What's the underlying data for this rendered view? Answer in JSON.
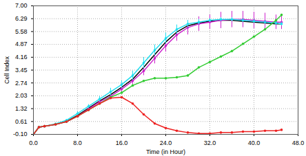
{
  "chart_data": {
    "type": "line",
    "x_label": "Time (in Hour)",
    "y_label": "Cell Index",
    "xlim": [
      0,
      48
    ],
    "xticks": [
      {
        "value": 0,
        "label": "0.0"
      },
      {
        "value": 8,
        "label": "8.0"
      },
      {
        "value": 16,
        "label": "16.0"
      },
      {
        "value": 24,
        "label": "24.0"
      },
      {
        "value": 32,
        "label": "32.0"
      },
      {
        "value": 40,
        "label": "40.0"
      },
      {
        "value": 48,
        "label": "48.0"
      }
    ],
    "ylim": [
      -0.1,
      7.0
    ],
    "yticks": [
      {
        "value": -0.1,
        "label": "-0.10"
      },
      {
        "value": 0.61,
        "label": "0.61"
      },
      {
        "value": 1.32,
        "label": "1.32"
      },
      {
        "value": 2.03,
        "label": "2.03"
      },
      {
        "value": 2.74,
        "label": "2.74"
      },
      {
        "value": 3.45,
        "label": "3.45"
      },
      {
        "value": 4.16,
        "label": "4.16"
      },
      {
        "value": 4.87,
        "label": "4.87"
      },
      {
        "value": 5.58,
        "label": "5.58"
      },
      {
        "value": 6.29,
        "label": "6.29"
      },
      {
        "value": 7.0,
        "label": "7.00"
      }
    ],
    "grid": true,
    "x": [
      0,
      1,
      2,
      4,
      6,
      8,
      10,
      12,
      14,
      16,
      18,
      20,
      22,
      24,
      26,
      28,
      30,
      32,
      34,
      36,
      38,
      40,
      42,
      44,
      45
    ],
    "series": [
      {
        "color": "#000000",
        "marker": "none",
        "values": [
          -0.1,
          0.3,
          0.35,
          0.45,
          0.62,
          0.95,
          1.35,
          1.75,
          2.1,
          2.5,
          2.95,
          3.6,
          4.3,
          5.0,
          5.55,
          5.9,
          6.05,
          6.15,
          6.2,
          6.2,
          6.15,
          6.1,
          6.05,
          6.0,
          6.0
        ]
      },
      {
        "color": "#cc22cc",
        "marker": "dot",
        "values": [
          -0.1,
          0.3,
          0.35,
          0.45,
          0.6,
          0.9,
          1.3,
          1.7,
          2.0,
          2.4,
          2.85,
          3.4,
          4.1,
          4.8,
          5.4,
          5.8,
          6.0,
          6.1,
          6.2,
          6.25,
          6.25,
          6.2,
          6.15,
          6.1,
          6.1
        ],
        "errors": [
          0,
          0,
          0,
          0.05,
          0.05,
          0.1,
          0.1,
          0.15,
          0.15,
          0.2,
          0.2,
          0.25,
          0.3,
          0.35,
          0.35,
          0.4,
          0.4,
          0.4,
          0.45,
          0.45,
          0.45,
          0.45,
          0.45,
          0.4,
          0.4
        ]
      },
      {
        "color": "#22ddee",
        "marker": "dot",
        "values": [
          -0.1,
          0.3,
          0.35,
          0.48,
          0.68,
          1.05,
          1.45,
          1.85,
          2.25,
          2.65,
          3.15,
          3.85,
          4.55,
          5.2,
          5.7,
          6.0,
          6.1,
          6.2,
          6.25,
          6.25,
          6.2,
          6.15,
          6.1,
          6.05,
          6.0
        ],
        "errors": [
          0,
          0,
          0,
          0.05,
          0.05,
          0.1,
          0.1,
          0.15,
          0.2,
          0.2,
          0.25,
          0.3,
          0.3,
          0.3,
          0.25,
          0.2,
          0.15,
          0.1,
          0.1,
          0.1,
          0.1,
          0.1,
          0.1,
          0.1,
          0.1
        ]
      },
      {
        "color": "#33cc33",
        "marker": "dot",
        "values": [
          -0.1,
          0.3,
          0.35,
          0.45,
          0.6,
          0.9,
          1.25,
          1.6,
          1.95,
          2.2,
          2.6,
          2.85,
          3.0,
          3.0,
          3.05,
          3.15,
          3.6,
          3.9,
          4.2,
          4.5,
          4.9,
          5.3,
          5.7,
          6.2,
          6.5
        ]
      },
      {
        "color": "#ee2222",
        "marker": "dot",
        "values": [
          -0.1,
          0.3,
          0.35,
          0.45,
          0.6,
          0.9,
          1.25,
          1.6,
          1.9,
          1.95,
          1.6,
          1.0,
          0.5,
          0.25,
          0.1,
          0.0,
          -0.05,
          -0.05,
          0.0,
          0.0,
          0.05,
          0.05,
          0.1,
          0.1,
          0.15
        ]
      }
    ]
  }
}
